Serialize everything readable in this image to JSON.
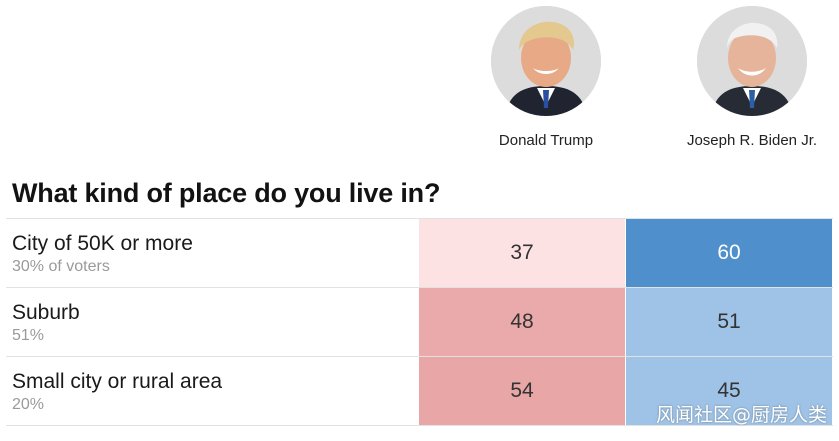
{
  "candidates": [
    {
      "name": "Donald Trump",
      "color": "#e8a6a7"
    },
    {
      "name": "Joseph R. Biden Jr.",
      "color": "#5b95cc"
    }
  ],
  "question": "What kind of place do you live in?",
  "chart_data": {
    "type": "table",
    "title": "What kind of place do you live in?",
    "columns": [
      "Donald Trump",
      "Joseph R. Biden Jr."
    ],
    "rows": [
      {
        "label": "City of 50K or more",
        "sublabel": "30% of voters",
        "values": [
          37,
          60
        ]
      },
      {
        "label": "Suburb",
        "sublabel": "51%",
        "values": [
          48,
          51
        ]
      },
      {
        "label": "Small city or rural area",
        "sublabel": "20%",
        "values": [
          54,
          45
        ]
      }
    ],
    "colors": {
      "trump": [
        "#fde2e3",
        "#eaaaab",
        "#e8a6a7"
      ],
      "biden": [
        "#4f8fcb",
        "#9fc3e6",
        "#9fc3e6"
      ]
    },
    "text_colors": {
      "trump": [
        "#333333",
        "#333333",
        "#333333"
      ],
      "biden": [
        "#ffffff",
        "#333333",
        "#333333"
      ]
    }
  },
  "watermark": "风闻社区@厨房人类"
}
